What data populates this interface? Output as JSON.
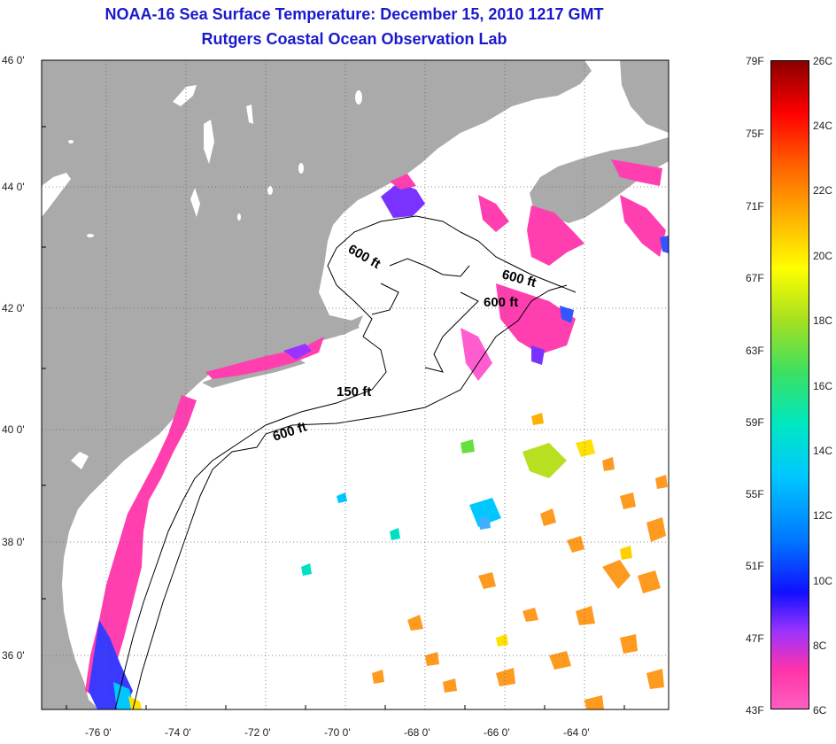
{
  "title": "NOAA-16 Sea Surface Temperature:  December 15, 2010 1217 GMT",
  "subtitle": "Rutgers Coastal Ocean Observation Lab",
  "lat_labels": [
    "46 0'",
    "44 0'",
    "42 0'",
    "40 0'",
    "38 0'",
    "36 0'"
  ],
  "lon_labels": [
    "-76 0'",
    "-74 0'",
    "-72 0'",
    "-70 0'",
    "-68 0'",
    "-66 0'",
    "-64 0'"
  ],
  "contours": [
    "600 ft",
    "600 ft",
    "600 ft",
    "150 ft",
    "600 ft"
  ],
  "colorbar": {
    "fahrenheit": [
      "79F",
      "75F",
      "71F",
      "67F",
      "63F",
      "59F",
      "55F",
      "51F",
      "47F",
      "43F"
    ],
    "celsius": [
      "26C",
      "24C",
      "22C",
      "20C",
      "18C",
      "16C",
      "14C",
      "12C",
      "10C",
      "8C",
      "6C"
    ]
  },
  "colors": {
    "land": "#aaaaaa",
    "title": "#1a1acc",
    "water": "#ffffff"
  }
}
